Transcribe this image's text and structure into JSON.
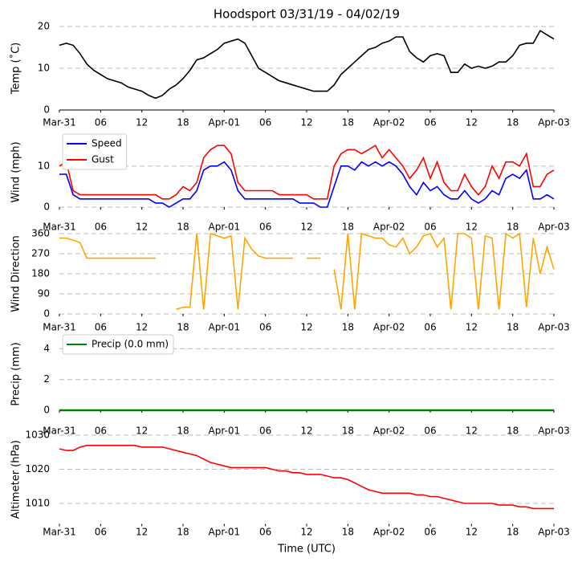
{
  "chart_data": [
    {
      "type": "line",
      "title": "Hoodsport 03/31/19 - 04/02/19",
      "ylabel": "Temp (˚C)",
      "x": [
        0,
        1,
        2,
        3,
        4,
        5,
        6,
        7,
        8,
        9,
        10,
        11,
        12,
        13,
        14,
        15,
        16,
        17,
        18,
        19,
        20,
        21,
        22,
        23,
        24,
        25,
        26,
        27,
        28,
        29,
        30,
        31,
        32,
        33,
        34,
        35,
        36,
        37,
        38,
        39,
        40,
        41,
        42,
        43,
        44,
        45,
        46,
        47,
        48,
        49,
        50,
        51,
        52,
        53,
        54,
        55,
        56,
        57,
        58,
        59,
        60,
        61,
        62,
        63,
        64,
        65,
        66,
        67,
        68,
        69,
        70,
        71,
        72
      ],
      "xlim": [
        0,
        72
      ],
      "xticks": [
        {
          "value": 0,
          "label": "Mar-31"
        },
        {
          "value": 6,
          "label": "06"
        },
        {
          "value": 12,
          "label": "12"
        },
        {
          "value": 18,
          "label": "18"
        },
        {
          "value": 24,
          "label": "Apr-01"
        },
        {
          "value": 30,
          "label": "06"
        },
        {
          "value": 36,
          "label": "12"
        },
        {
          "value": 42,
          "label": "18"
        },
        {
          "value": 48,
          "label": "Apr-02"
        },
        {
          "value": 54,
          "label": "06"
        },
        {
          "value": 60,
          "label": "12"
        },
        {
          "value": 66,
          "label": "18"
        },
        {
          "value": 72,
          "label": "Apr-03"
        }
      ],
      "ylim": [
        0,
        20
      ],
      "yticks": [
        0,
        10,
        20
      ],
      "grid": true,
      "series": [
        {
          "color": "#000000",
          "values": [
            15.5,
            16,
            15.5,
            13.5,
            11,
            9.5,
            8.5,
            7.5,
            7,
            6.5,
            5.5,
            5,
            4.5,
            3.5,
            2.8,
            3.5,
            5,
            6,
            7.5,
            9.5,
            12,
            12.5,
            13.5,
            14.5,
            16,
            16.5,
            17,
            16,
            13,
            10,
            9,
            8,
            7,
            6.5,
            6,
            5.5,
            5,
            4.5,
            4.5,
            4.5,
            6,
            8.5,
            10,
            11.5,
            13,
            14.5,
            15,
            16,
            16.5,
            17.5,
            17.5,
            14,
            12.5,
            11.5,
            13,
            13.5,
            13,
            9,
            9,
            11,
            10,
            10.5,
            10,
            10.5,
            11.5,
            11.5,
            13,
            15.5,
            16,
            16,
            19,
            18,
            17
          ]
        }
      ]
    },
    {
      "type": "line",
      "ylabel": "Wind (mph)",
      "legend": "upper left",
      "x": [
        0,
        1,
        2,
        3,
        4,
        5,
        6,
        7,
        8,
        9,
        10,
        11,
        12,
        13,
        14,
        15,
        16,
        17,
        18,
        19,
        20,
        21,
        22,
        23,
        24,
        25,
        26,
        27,
        28,
        29,
        30,
        31,
        32,
        33,
        34,
        35,
        36,
        37,
        38,
        39,
        40,
        41,
        42,
        43,
        44,
        45,
        46,
        47,
        48,
        49,
        50,
        51,
        52,
        53,
        54,
        55,
        56,
        57,
        58,
        59,
        60,
        61,
        62,
        63,
        64,
        65,
        66,
        67,
        68,
        69,
        70,
        71,
        72
      ],
      "xlim": [
        0,
        72
      ],
      "xticks": [
        {
          "value": 0,
          "label": "Mar-31"
        },
        {
          "value": 6,
          "label": "06"
        },
        {
          "value": 12,
          "label": "12"
        },
        {
          "value": 18,
          "label": "18"
        },
        {
          "value": 24,
          "label": "Apr-01"
        },
        {
          "value": 30,
          "label": "06"
        },
        {
          "value": 36,
          "label": "12"
        },
        {
          "value": 42,
          "label": "18"
        },
        {
          "value": 48,
          "label": "Apr-02"
        },
        {
          "value": 54,
          "label": "06"
        },
        {
          "value": 60,
          "label": "12"
        },
        {
          "value": 66,
          "label": "18"
        },
        {
          "value": 72,
          "label": "Apr-03"
        }
      ],
      "ylim": [
        0,
        17
      ],
      "yticks": [
        0,
        10
      ],
      "grid": true,
      "series": [
        {
          "name": "Speed",
          "color": "#0000ff",
          "values": [
            8,
            8,
            3,
            2,
            2,
            2,
            2,
            2,
            2,
            2,
            2,
            2,
            2,
            2,
            1,
            1,
            0,
            1,
            2,
            2,
            4,
            9,
            10,
            10,
            11,
            9,
            4,
            2,
            2,
            2,
            2,
            2,
            2,
            2,
            2,
            1,
            1,
            1,
            0,
            0,
            5,
            10,
            10,
            9,
            11,
            10,
            11,
            10,
            11,
            10,
            8,
            5,
            3,
            6,
            4,
            5,
            3,
            2,
            2,
            4,
            2,
            1,
            2,
            4,
            3,
            7,
            8,
            7,
            9,
            2,
            2,
            3,
            2
          ]
        },
        {
          "name": "Gust",
          "color": "#ff0000",
          "values": [
            10,
            11,
            4,
            3,
            3,
            3,
            3,
            3,
            3,
            3,
            3,
            3,
            3,
            3,
            3,
            2,
            2,
            3,
            5,
            4,
            6,
            12,
            14,
            15,
            15,
            13,
            6,
            4,
            4,
            4,
            4,
            4,
            3,
            3,
            3,
            3,
            3,
            2,
            2,
            2,
            10,
            13,
            14,
            14,
            13,
            14,
            15,
            12,
            14,
            12,
            10,
            7,
            9,
            12,
            7,
            11,
            6,
            4,
            4,
            8,
            5,
            3,
            5,
            10,
            7,
            11,
            11,
            10,
            13,
            5,
            5,
            8,
            9
          ]
        }
      ]
    },
    {
      "type": "line",
      "ylabel": "Wind Direction",
      "x": [
        0,
        1,
        2,
        3,
        4,
        5,
        6,
        7,
        8,
        9,
        10,
        11,
        12,
        13,
        14,
        15,
        16,
        17,
        18,
        19,
        20,
        21,
        22,
        23,
        24,
        25,
        26,
        27,
        28,
        29,
        30,
        31,
        32,
        33,
        34,
        35,
        36,
        37,
        38,
        39,
        40,
        41,
        42,
        43,
        44,
        45,
        46,
        47,
        48,
        49,
        50,
        51,
        52,
        53,
        54,
        55,
        56,
        57,
        58,
        59,
        60,
        61,
        62,
        63,
        64,
        65,
        66,
        67,
        68,
        69,
        70,
        71,
        72
      ],
      "xlim": [
        0,
        72
      ],
      "xticks": [
        {
          "value": 0,
          "label": "Mar-31"
        },
        {
          "value": 6,
          "label": "06"
        },
        {
          "value": 12,
          "label": "12"
        },
        {
          "value": 18,
          "label": "18"
        },
        {
          "value": 24,
          "label": "Apr-01"
        },
        {
          "value": 30,
          "label": "06"
        },
        {
          "value": 36,
          "label": "12"
        },
        {
          "value": 42,
          "label": "18"
        },
        {
          "value": 48,
          "label": "Apr-02"
        },
        {
          "value": 54,
          "label": "06"
        },
        {
          "value": 60,
          "label": "12"
        },
        {
          "value": 66,
          "label": "18"
        },
        {
          "value": 72,
          "label": "Apr-03"
        }
      ],
      "ylim": [
        0,
        360
      ],
      "yticks": [
        0,
        90,
        180,
        270,
        360
      ],
      "grid": true,
      "series": [
        {
          "color": "#ffa500",
          "values": [
            340,
            340,
            330,
            320,
            250,
            250,
            250,
            250,
            250,
            250,
            250,
            250,
            250,
            250,
            250,
            null,
            null,
            20,
            30,
            30,
            360,
            20,
            360,
            350,
            340,
            350,
            20,
            340,
            290,
            260,
            250,
            250,
            250,
            250,
            250,
            null,
            250,
            250,
            250,
            null,
            200,
            20,
            360,
            20,
            360,
            350,
            340,
            340,
            310,
            300,
            340,
            270,
            300,
            350,
            360,
            300,
            340,
            20,
            360,
            360,
            340,
            20,
            350,
            340,
            20,
            360,
            340,
            360,
            30,
            340,
            180,
            300,
            200
          ]
        }
      ]
    },
    {
      "type": "line",
      "ylabel": "Precip (mm)",
      "legend": "upper left",
      "x": [
        0,
        72
      ],
      "xlim": [
        0,
        72
      ],
      "xticks": [
        {
          "value": 0,
          "label": "Mar-31"
        },
        {
          "value": 6,
          "label": "06"
        },
        {
          "value": 12,
          "label": "12"
        },
        {
          "value": 18,
          "label": "18"
        },
        {
          "value": 24,
          "label": "Apr-01"
        },
        {
          "value": 30,
          "label": "06"
        },
        {
          "value": 36,
          "label": "12"
        },
        {
          "value": 42,
          "label": "18"
        },
        {
          "value": 48,
          "label": "Apr-02"
        },
        {
          "value": 54,
          "label": "06"
        },
        {
          "value": 60,
          "label": "12"
        },
        {
          "value": 66,
          "label": "18"
        },
        {
          "value": 72,
          "label": "Apr-03"
        }
      ],
      "ylim": [
        0,
        4.7
      ],
      "yticks": [
        0,
        2,
        4
      ],
      "grid": true,
      "series": [
        {
          "name": "Precip (0.0 mm)",
          "color": "#008000",
          "values": [
            0,
            0
          ]
        }
      ]
    },
    {
      "type": "line",
      "ylabel": "Altimeter (hPa)",
      "xlabel": "Time (UTC)",
      "x": [
        0,
        1,
        2,
        3,
        4,
        5,
        6,
        7,
        8,
        9,
        10,
        11,
        12,
        13,
        14,
        15,
        16,
        17,
        18,
        19,
        20,
        21,
        22,
        23,
        24,
        25,
        26,
        27,
        28,
        29,
        30,
        31,
        32,
        33,
        34,
        35,
        36,
        37,
        38,
        39,
        40,
        41,
        42,
        43,
        44,
        45,
        46,
        47,
        48,
        49,
        50,
        51,
        52,
        53,
        54,
        55,
        56,
        57,
        58,
        59,
        60,
        61,
        62,
        63,
        64,
        65,
        66,
        67,
        68,
        69,
        70,
        71,
        72
      ],
      "xlim": [
        0,
        72
      ],
      "xticks": [
        {
          "value": 0,
          "label": "Mar-31"
        },
        {
          "value": 6,
          "label": "06"
        },
        {
          "value": 12,
          "label": "12"
        },
        {
          "value": 18,
          "label": "18"
        },
        {
          "value": 24,
          "label": "Apr-01"
        },
        {
          "value": 30,
          "label": "06"
        },
        {
          "value": 36,
          "label": "12"
        },
        {
          "value": 42,
          "label": "18"
        },
        {
          "value": 48,
          "label": "Apr-02"
        },
        {
          "value": 54,
          "label": "06"
        },
        {
          "value": 60,
          "label": "12"
        },
        {
          "value": 66,
          "label": "18"
        },
        {
          "value": 72,
          "label": "Apr-03"
        }
      ],
      "ylim": [
        1004,
        1030
      ],
      "yticks": [
        1010,
        1020,
        1030
      ],
      "grid": true,
      "series": [
        {
          "color": "#ff0000",
          "values": [
            1026,
            1025.5,
            1025.5,
            1026.5,
            1027,
            1027,
            1027,
            1027,
            1027,
            1027,
            1027,
            1027,
            1026.5,
            1026.5,
            1026.5,
            1026.5,
            1026,
            1025.5,
            1025,
            1024.5,
            1024,
            1023,
            1022,
            1021.5,
            1021,
            1020.5,
            1020.5,
            1020.5,
            1020.5,
            1020.5,
            1020.5,
            1020,
            1019.5,
            1019.5,
            1019,
            1019,
            1018.5,
            1018.5,
            1018.5,
            1018,
            1017.5,
            1017.5,
            1017,
            1016,
            1015,
            1014,
            1013.5,
            1013,
            1013,
            1013,
            1013,
            1013,
            1012.5,
            1012.5,
            1012,
            1012,
            1011.5,
            1011,
            1010.5,
            1010,
            1010,
            1010,
            1010,
            1010,
            1009.5,
            1009.5,
            1009.5,
            1009,
            1009,
            1008.5,
            1008.5,
            1008.5,
            1008.5
          ]
        }
      ]
    }
  ]
}
